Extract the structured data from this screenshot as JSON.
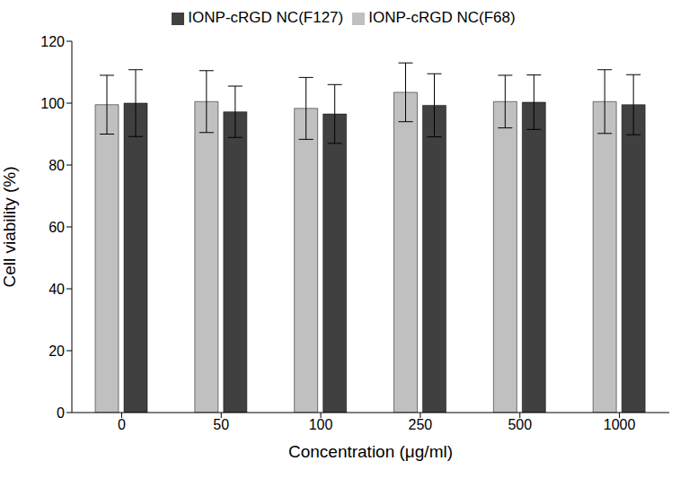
{
  "chart_data": {
    "type": "bar",
    "x_label": "Concentration (μg/ml)",
    "y_label": "Cell viability (%)",
    "categories": [
      "0",
      "50",
      "100",
      "250",
      "500",
      "1000"
    ],
    "series": [
      {
        "name": "IONP-cRGD NC(F68)",
        "color": "#c0c0c0",
        "values": [
          99.5,
          100.5,
          98.3,
          103.5,
          100.5,
          100.5
        ],
        "errors": [
          9.5,
          10,
          10,
          9.5,
          8.5,
          10.3
        ]
      },
      {
        "name": "IONP-cRGD NC(F127)",
        "color": "#404040",
        "values": [
          100,
          97.2,
          96.5,
          99.3,
          100.3,
          99.5
        ],
        "errors": [
          10.8,
          8.3,
          9.5,
          10.2,
          8.8,
          9.7
        ]
      }
    ],
    "ylim": [
      0,
      120
    ],
    "yticks": [
      0,
      20,
      40,
      60,
      80,
      100,
      120
    ],
    "grid": false,
    "legend": "top"
  }
}
